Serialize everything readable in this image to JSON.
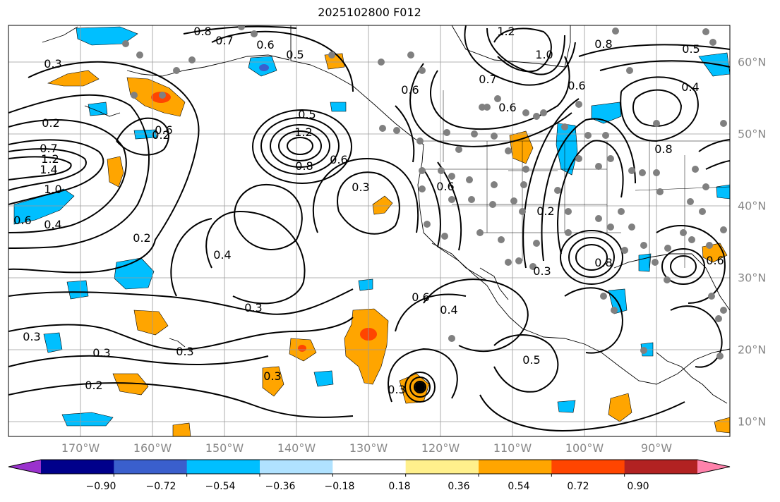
{
  "title": "2025102800 F012",
  "lon_labels": [
    "170°W",
    "160°W",
    "150°W",
    "140°W",
    "130°W",
    "120°W",
    "110°W",
    "100°W",
    "90°W"
  ],
  "lat_labels": [
    "60°N",
    "50°N",
    "40°N",
    "30°N",
    "20°N",
    "10°N"
  ],
  "colorbar": {
    "colors": [
      "#9a32cd",
      "#00008b",
      "#3a5fcd",
      "#00bfff",
      "#b0e2ff",
      "#ffffff",
      "#fff08c",
      "#ffa500",
      "#ff4500",
      "#b22222",
      "#ff82ab"
    ],
    "tick_labels": [
      "−0.90",
      "−0.72",
      "−0.54",
      "−0.36",
      "−0.18",
      "0.18",
      "0.36",
      "0.54",
      "0.72",
      "0.90"
    ]
  },
  "contour_labels": [
    "0.8",
    "0.7",
    "0.6",
    "0.5",
    "0.3",
    "0.2",
    "0.7",
    "1.2",
    "1.4",
    "1.0",
    "0.6",
    "0.4",
    "0.2",
    "0.5",
    "1.2",
    "0.8",
    "0.6",
    "0.3",
    "0.4",
    "0.3",
    "0.3",
    "0.3",
    "0.3",
    "0.2",
    "0.3",
    "0.6",
    "0.4",
    "0.5",
    "1.2",
    "1.0",
    "0.8",
    "0.5",
    "0.4",
    "0.6",
    "0.6",
    "0.7",
    "0.6",
    "0.2",
    "0.8",
    "0.6",
    "0.2",
    "0.3",
    "0.8",
    "0.6",
    "0.6",
    "0.3"
  ]
}
